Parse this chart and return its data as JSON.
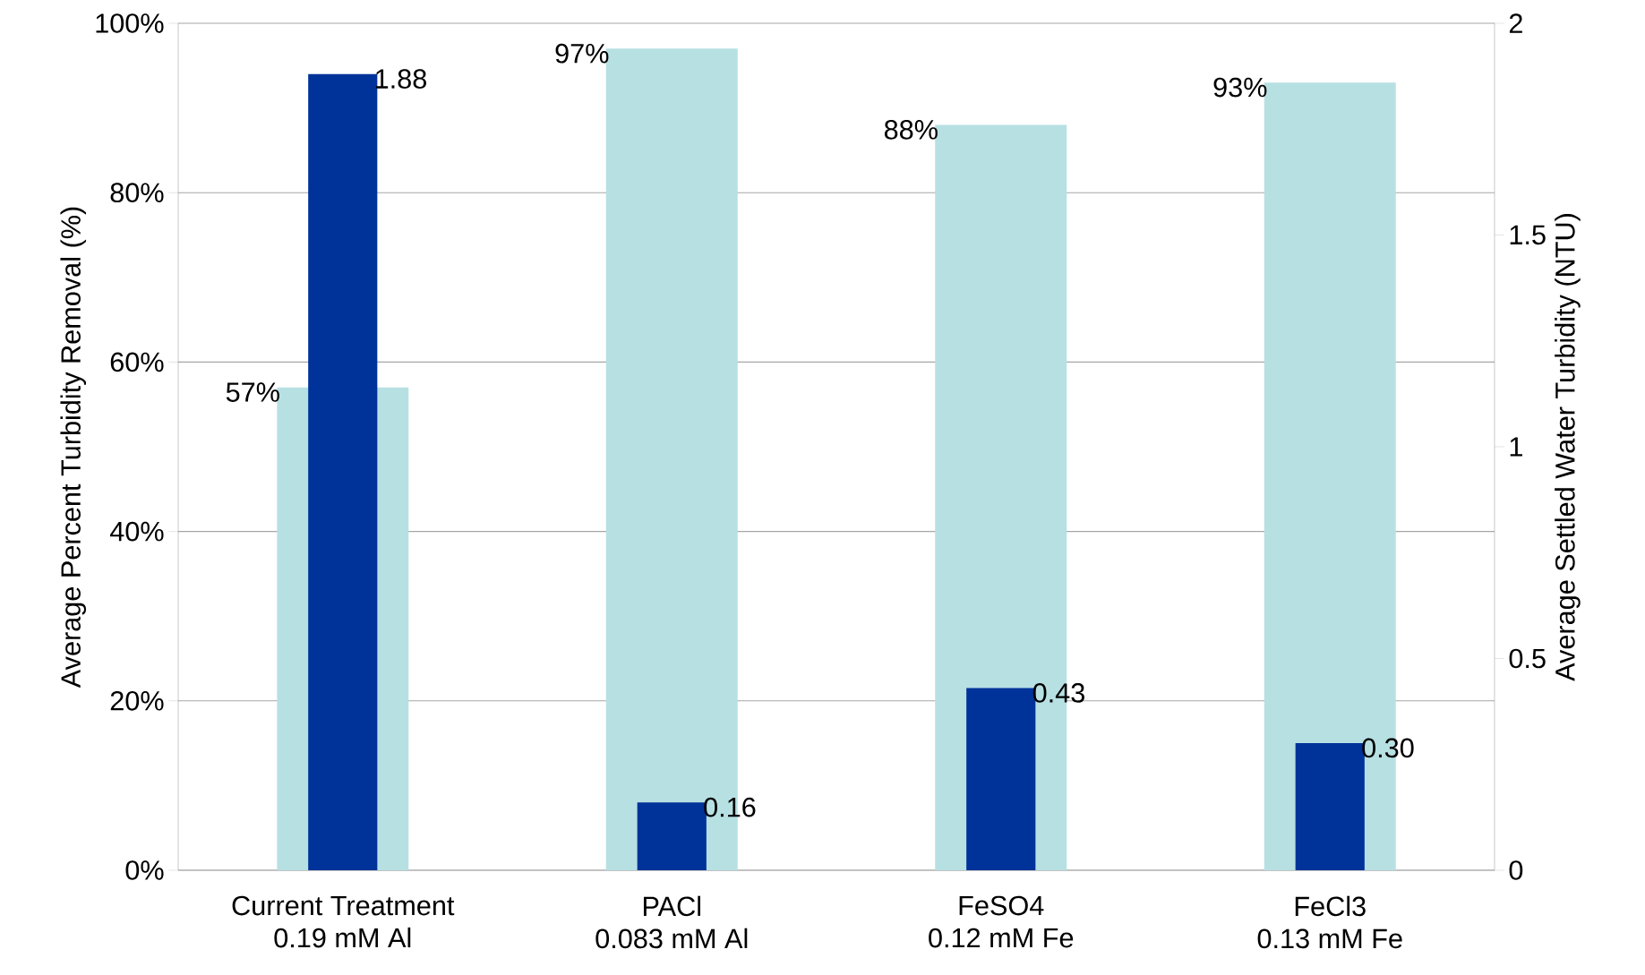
{
  "chart_data": {
    "type": "bar",
    "ylabel": "Average Percent Turbidity Removal (%)",
    "y2label": "Average Settled Water Turbidity (NTU)",
    "categories": [
      "Current Treatment\n0.19 mM Al",
      "PACl\n0.083 mM Al",
      "FeSO4\n0.12 mM Fe",
      "FeCl3\n0.13 mM Fe"
    ],
    "series": [
      {
        "color": "#b7e0e3",
        "values": [
          57,
          97,
          88,
          93
        ],
        "value_labels": [
          "57%",
          "97%",
          "88%",
          "93%"
        ]
      },
      {
        "color": "#003399",
        "axis": "y2",
        "values": [
          1.88,
          0.16,
          0.43,
          0.3
        ],
        "value_labels": [
          "1.88",
          "0.16",
          "0.43",
          "0.30"
        ]
      }
    ],
    "ylim": [
      0,
      100
    ],
    "yticks": [
      {
        "value": 0,
        "label": "0%"
      },
      {
        "value": 20,
        "label": "20%"
      },
      {
        "value": 40,
        "label": "40%"
      },
      {
        "value": 60,
        "label": "60%"
      },
      {
        "value": 80,
        "label": "80%"
      },
      {
        "value": 100,
        "label": "100%"
      }
    ],
    "y2lim": [
      0,
      2
    ],
    "y2ticks": [
      0,
      0.5,
      1,
      1.5,
      2
    ],
    "grid": "y"
  }
}
